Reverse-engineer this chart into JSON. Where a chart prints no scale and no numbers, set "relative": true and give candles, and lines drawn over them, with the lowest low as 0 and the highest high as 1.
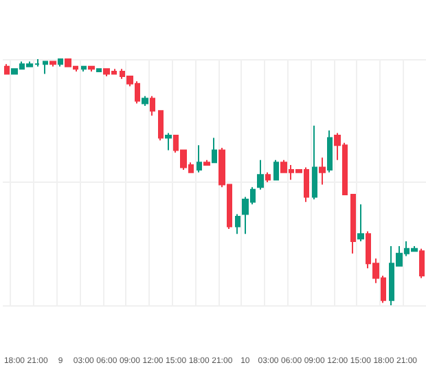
{
  "chart_data": {
    "type": "candlestick",
    "relative": true,
    "grid": true,
    "categories": [
      null,
      "18:00",
      null,
      null,
      "21:00",
      null,
      null,
      "9",
      null,
      null,
      "03:00",
      null,
      null,
      "06:00",
      null,
      null,
      "09:00",
      null,
      null,
      "12:00",
      null,
      null,
      "15:00",
      null,
      null,
      "18:00",
      null,
      null,
      "21:00",
      null,
      null,
      "10",
      null,
      null,
      "03:00",
      null,
      null,
      "06:00",
      null,
      null,
      "09:00",
      null,
      null,
      "12:00",
      null,
      null,
      "15:00",
      null,
      null,
      "18:00",
      null,
      null,
      "21:00",
      null,
      null
    ],
    "ohlc": [
      [
        0.97,
        0.98,
        0.94,
        0.94
      ],
      [
        0.94,
        0.96,
        0.94,
        0.96
      ],
      [
        0.96,
        0.99,
        0.96,
        0.98
      ],
      [
        0.97,
        0.99,
        0.97,
        0.98
      ],
      [
        0.98,
        1.0,
        0.97,
        0.98
      ],
      [
        0.98,
        0.99,
        0.94,
        0.99
      ],
      [
        0.99,
        0.99,
        0.97,
        0.98
      ],
      [
        0.98,
        1.0,
        0.97,
        1.0
      ],
      [
        1.0,
        1.0,
        0.97,
        0.97
      ],
      [
        0.97,
        0.97,
        0.95,
        0.96
      ],
      [
        0.96,
        0.97,
        0.95,
        0.97
      ],
      [
        0.97,
        0.97,
        0.95,
        0.96
      ],
      [
        0.95,
        0.96,
        0.95,
        0.96
      ],
      [
        0.96,
        0.96,
        0.93,
        0.94
      ],
      [
        0.95,
        0.96,
        0.94,
        0.94
      ],
      [
        0.95,
        0.96,
        0.92,
        0.93
      ],
      [
        0.93,
        0.93,
        0.89,
        0.9
      ],
      [
        0.9,
        0.91,
        0.82,
        0.83
      ],
      [
        0.82,
        0.85,
        0.81,
        0.84
      ],
      [
        0.84,
        0.85,
        0.77,
        0.79
      ],
      [
        0.79,
        0.79,
        0.67,
        0.68
      ],
      [
        0.68,
        0.7,
        0.63,
        0.69
      ],
      [
        0.69,
        0.69,
        0.62,
        0.63
      ],
      [
        0.63,
        0.63,
        0.55,
        0.56
      ],
      [
        0.57,
        0.58,
        0.54,
        0.54
      ],
      [
        0.55,
        0.65,
        0.54,
        0.58
      ],
      [
        0.58,
        0.59,
        0.57,
        0.57
      ],
      [
        0.58,
        0.68,
        0.58,
        0.63
      ],
      [
        0.63,
        0.64,
        0.48,
        0.49
      ],
      [
        0.49,
        0.49,
        0.31,
        0.32
      ],
      [
        0.32,
        0.37,
        0.29,
        0.36
      ],
      [
        0.37,
        0.44,
        0.29,
        0.43
      ],
      [
        0.42,
        0.48,
        0.41,
        0.47
      ],
      [
        0.48,
        0.59,
        0.47,
        0.53
      ],
      [
        0.53,
        0.54,
        0.5,
        0.51
      ],
      [
        0.51,
        0.59,
        0.51,
        0.58
      ],
      [
        0.58,
        0.59,
        0.54,
        0.54
      ],
      [
        0.55,
        0.57,
        0.51,
        0.54
      ],
      [
        0.55,
        0.55,
        0.54,
        0.54
      ],
      [
        0.55,
        0.56,
        0.42,
        0.44
      ],
      [
        0.44,
        0.73,
        0.43,
        0.56
      ],
      [
        0.56,
        0.6,
        0.49,
        0.54
      ],
      [
        0.55,
        0.71,
        0.54,
        0.68
      ],
      [
        0.69,
        0.7,
        0.59,
        0.65
      ],
      [
        0.65,
        0.66,
        0.45,
        0.45
      ],
      [
        0.45,
        0.45,
        0.21,
        0.26
      ],
      [
        0.27,
        0.41,
        0.26,
        0.29
      ],
      [
        0.29,
        0.3,
        0.15,
        0.17
      ],
      [
        0.17,
        0.19,
        0.09,
        0.11
      ],
      [
        0.11,
        0.12,
        0.01,
        0.02
      ],
      [
        0.02,
        0.24,
        0.0,
        0.17
      ],
      [
        0.16,
        0.24,
        0.16,
        0.21
      ],
      [
        0.21,
        0.26,
        0.2,
        0.23
      ],
      [
        0.22,
        0.24,
        0.22,
        0.23
      ],
      [
        0.22,
        0.23,
        0.11,
        0.12
      ]
    ]
  }
}
